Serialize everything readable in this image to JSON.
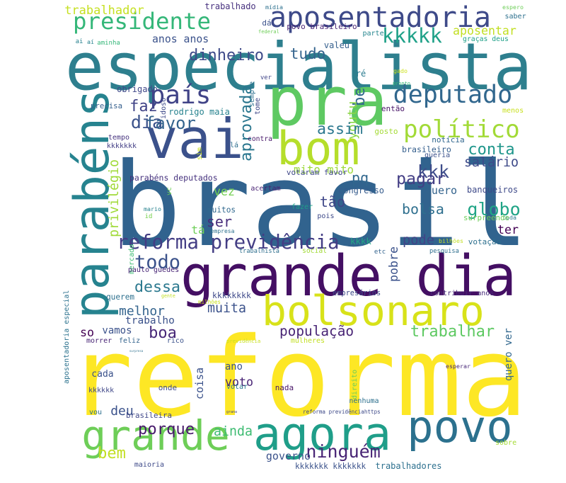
{
  "words": [
    {
      "text": "brasil",
      "color": "#31638e"
    },
    {
      "text": "reforma",
      "color": "#fde725"
    },
    {
      "text": "especialista",
      "color": "#2e7f8e"
    },
    {
      "text": "pra",
      "color": "#5ec962"
    },
    {
      "text": "grande dia",
      "color": "#440f63"
    },
    {
      "text": "vai",
      "color": "#3b518b"
    },
    {
      "text": "bom",
      "color": "#b5de2b"
    },
    {
      "text": "parabéns",
      "color": "#26838f"
    },
    {
      "text": "bolsonaro",
      "color": "#d8e219"
    },
    {
      "text": "agora",
      "color": "#1f9e89"
    },
    {
      "text": "povo",
      "color": "#2c718e"
    },
    {
      "text": "grande",
      "color": "#6ece58"
    },
    {
      "text": "aposentadoria",
      "color": "#3e4a89"
    },
    {
      "text": "presidente",
      "color": "#35b779"
    },
    {
      "text": "deputado",
      "color": "#31678e"
    },
    {
      "text": "país",
      "color": "#404387"
    },
    {
      "text": "político",
      "color": "#a2da37"
    },
    {
      "text": "reforma previdência",
      "color": "#433d84"
    },
    {
      "text": "trabalhador",
      "color": "#c5e021"
    },
    {
      "text": "trabalhado",
      "color": "#46307e"
    },
    {
      "text": "mídia",
      "color": "#2d708e"
    },
    {
      "text": "espero",
      "color": "#6ece58"
    },
    {
      "text": "dá",
      "color": "#3b528b"
    },
    {
      "text": "povo brasileiro",
      "color": "#482475"
    },
    {
      "text": "saber",
      "color": "#2d708e"
    },
    {
      "text": "federal",
      "color": "#6ece58"
    },
    {
      "text": "parte",
      "color": "#25858e"
    },
    {
      "text": "ai",
      "color": "#26818e"
    },
    {
      "text": "aí",
      "color": "#26818e"
    },
    {
      "text": "aminha",
      "color": "#35b779"
    },
    {
      "text": "valeu",
      "color": "#355f8d"
    },
    {
      "text": "graças deus",
      "color": "#1fa088"
    },
    {
      "text": "anos anos",
      "color": "#3b528b"
    },
    {
      "text": "dinheiro",
      "color": "#3e4a89"
    },
    {
      "text": "kkkkk",
      "color": "#1fa188"
    },
    {
      "text": "aposentar",
      "color": "#c2df23"
    },
    {
      "text": "tudo",
      "color": "#33638d"
    },
    {
      "text": "ver",
      "color": "#404588"
    },
    {
      "text": "gado",
      "color": "#cde11d"
    },
    {
      "text": "ré",
      "color": "#297a8e"
    },
    {
      "text": "pronto",
      "color": "#38b977"
    },
    {
      "text": "sempre",
      "color": "#2d708e"
    },
    {
      "text": "obrigado",
      "color": "#3f4788"
    },
    {
      "text": "be",
      "color": "#31678e"
    },
    {
      "text": "idoso",
      "color": "#3e4a89"
    },
    {
      "text": "menos",
      "color": "#c8e020"
    },
    {
      "text": "rodrigo maia",
      "color": "#26828e"
    },
    {
      "text": "tome",
      "color": "#3f4788"
    },
    {
      "text": "então",
      "color": "#481467"
    },
    {
      "text": "precisa",
      "color": "#355f8d"
    },
    {
      "text": "faz",
      "color": "#414487"
    },
    {
      "text": "youtu",
      "color": "#8bd646"
    },
    {
      "text": "aprovada",
      "color": "#2a768e"
    },
    {
      "text": "dia",
      "color": "#3b528b"
    },
    {
      "text": "favor",
      "color": "#33638d"
    },
    {
      "text": "assim",
      "color": "#2a778e"
    },
    {
      "text": "conta",
      "color": "#1f968b"
    },
    {
      "text": "tempo",
      "color": "#46337f"
    },
    {
      "text": "gosto",
      "color": "#a5db36"
    },
    {
      "text": "notícia",
      "color": "#31678e"
    },
    {
      "text": "brasileiro",
      "color": "#355f8d"
    },
    {
      "text": "kkkkkkk",
      "color": "#433e85"
    },
    {
      "text": "sim",
      "color": "#c8e020"
    },
    {
      "text": "contra",
      "color": "#48186a"
    },
    {
      "text": "lá",
      "color": "#2e6e8e"
    },
    {
      "text": "salário",
      "color": "#3e4a89"
    },
    {
      "text": "privilégio",
      "color": "#a0da39"
    },
    {
      "text": "mito mito",
      "color": "#9dd93b"
    },
    {
      "text": "kkk",
      "color": "#3e4c8a"
    },
    {
      "text": "queria",
      "color": "#3b518b"
    },
    {
      "text": "parabéns deputados",
      "color": "#46327e"
    },
    {
      "text": "votaram favor",
      "color": "#3f4889"
    },
    {
      "text": "pq",
      "color": "#31678e"
    },
    {
      "text": "pagar",
      "color": "#433e85"
    },
    {
      "text": "vc",
      "color": "#6ece58"
    },
    {
      "text": "acertam",
      "color": "#482173"
    },
    {
      "text": "congresso",
      "color": "#365c8d"
    },
    {
      "text": "quero",
      "color": "#33638d"
    },
    {
      "text": "banqueiros",
      "color": "#3e4a89"
    },
    {
      "text": "vez",
      "color": "#75d054"
    },
    {
      "text": "tão",
      "color": "#3f4788"
    },
    {
      "text": "bolsa",
      "color": "#2e6f8e"
    },
    {
      "text": "globo",
      "color": "#20a486"
    },
    {
      "text": "mario",
      "color": "#26828e"
    },
    {
      "text": "id",
      "color": "#7ad151"
    },
    {
      "text": "muitos",
      "color": "#31688e"
    },
    {
      "text": "fazer",
      "color": "#1f9e89"
    },
    {
      "text": "pois",
      "color": "#3e4a89"
    },
    {
      "text": "toda",
      "color": "#297a8e"
    },
    {
      "text": "ser",
      "color": "#472d7b"
    },
    {
      "text": "surpreende",
      "color": "#6ece58"
    },
    {
      "text": "ter",
      "color": "#440154"
    },
    {
      "text": "empresa",
      "color": "#2d708e"
    },
    {
      "text": "tá",
      "color": "#6ece58"
    },
    {
      "text": "kkkk",
      "color": "#22a785"
    },
    {
      "text": "pode",
      "color": "#414487"
    },
    {
      "text": "pobre",
      "color": "#3b528b"
    },
    {
      "text": "mercado",
      "color": "#3fbc73"
    },
    {
      "text": "trabalhista",
      "color": "#2e6f8e"
    },
    {
      "text": "social",
      "color": "#a2da37"
    },
    {
      "text": "etc",
      "color": "#33638d"
    },
    {
      "text": "pesquisa",
      "color": "#2e6f8e"
    },
    {
      "text": "bilhões",
      "color": "#c2df23"
    },
    {
      "text": "votação",
      "color": "#2d708e"
    },
    {
      "text": "todo",
      "color": "#3b528b"
    },
    {
      "text": "paulo guedes",
      "color": "#482576"
    },
    {
      "text": "dessa",
      "color": "#2a788e"
    },
    {
      "text": "kkkkkkkk",
      "color": "#3e4989"
    },
    {
      "text": "empresários",
      "color": "#3e4a89"
    },
    {
      "text": "contribuir anos",
      "color": "#472a7a"
    },
    {
      "text": "querem",
      "color": "#2d708e"
    },
    {
      "text": "gente",
      "color": "#c2df23"
    },
    {
      "text": "milhões",
      "color": "#c8e020"
    },
    {
      "text": "melhor",
      "color": "#33638d"
    },
    {
      "text": "muita",
      "color": "#3b528b"
    },
    {
      "text": "aposentadoria especial",
      "color": "#2c728e"
    },
    {
      "text": "trabalho",
      "color": "#3b528b"
    },
    {
      "text": "população",
      "color": "#482475"
    },
    {
      "text": "so",
      "color": "#440154"
    },
    {
      "text": "vamos",
      "color": "#3b528b"
    },
    {
      "text": "boa",
      "color": "#482878"
    },
    {
      "text": "trabalhar",
      "color": "#5ec962"
    },
    {
      "text": "quero ver",
      "color": "#31678e"
    },
    {
      "text": "morrer",
      "color": "#482475"
    },
    {
      "text": "feliz",
      "color": "#33638d"
    },
    {
      "text": "rico",
      "color": "#3b528b"
    },
    {
      "text": "previdência",
      "color": "#c8e020"
    },
    {
      "text": "mulheres",
      "color": "#c2df23"
    },
    {
      "text": "surpresa",
      "color": "#2d708e"
    },
    {
      "text": "ano",
      "color": "#3b528b"
    },
    {
      "text": "coisa",
      "color": "#3b528b"
    },
    {
      "text": "esperar",
      "color": "#482878"
    },
    {
      "text": "cada",
      "color": "#3b528b"
    },
    {
      "text": "voto",
      "color": "#482475"
    },
    {
      "text": "kkkkkk",
      "color": "#3f4788"
    },
    {
      "text": "onde",
      "color": "#3e4a89"
    },
    {
      "text": "votar",
      "color": "#2a788e"
    },
    {
      "text": "nada",
      "color": "#481567"
    },
    {
      "text": "direito",
      "color": "#6ece58"
    },
    {
      "text": "nenhuma",
      "color": "#2d708e"
    },
    {
      "text": "deu",
      "color": "#3b528b"
    },
    {
      "text": "brasileira",
      "color": "#3f4788"
    },
    {
      "text": "grana",
      "color": "#414487"
    },
    {
      "text": "reforma previdênciahttps",
      "color": "#3e4a89"
    },
    {
      "text": "vou",
      "color": "#2d708e"
    },
    {
      "text": "porque",
      "color": "#481a6c"
    },
    {
      "text": "ainda",
      "color": "#3fbc73"
    },
    {
      "text": "bem",
      "color": "#c2df23"
    },
    {
      "text": "ninguém",
      "color": "#482475"
    },
    {
      "text": "sobre",
      "color": "#a5db36"
    },
    {
      "text": "governo",
      "color": "#3b528b"
    },
    {
      "text": "maioria",
      "color": "#3e4a89"
    },
    {
      "text": "kkkkkkk kkkkkkk",
      "color": "#3b528b"
    },
    {
      "text": "trabalhadores",
      "color": "#2d708e"
    }
  ]
}
